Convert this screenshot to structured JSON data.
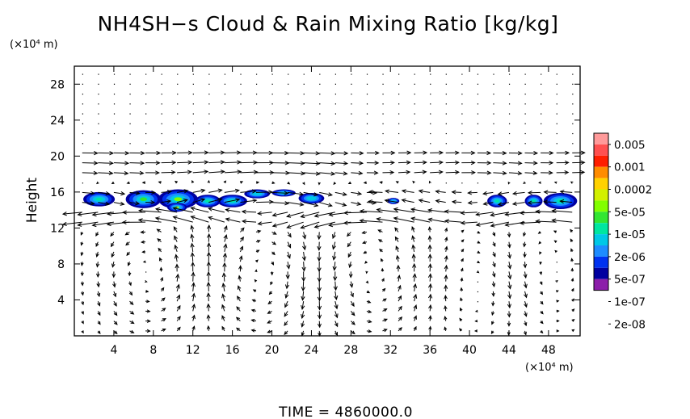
{
  "chart_data": {
    "type": "heatmap",
    "title": "NH4SH−s Cloud & Rain Mixing Ratio [kg/kg]",
    "xunit": "(×10⁴ m)",
    "yunit": "(×10⁴ m)",
    "ylabel": "Height",
    "time_label": "TIME  =  4860000.0",
    "xlim": [
      0,
      51.2
    ],
    "ylim": [
      0,
      30
    ],
    "xticks": [
      "4",
      "8",
      "12",
      "16",
      "20",
      "24",
      "28",
      "32",
      "36",
      "40",
      "44",
      "48"
    ],
    "yticks": [
      "4",
      "8",
      "12",
      "16",
      "20",
      "24",
      "28"
    ],
    "colorbar": {
      "labels": [
        "0.005",
        "0.001",
        "0.0002",
        "5e-05",
        "1e-05",
        "2e-06",
        "5e-07",
        "1e-07",
        "2e-08"
      ],
      "colors": [
        "#ff9a9a",
        "#ff5050",
        "#ff1e00",
        "#ff8c00",
        "#ffd200",
        "#d2f000",
        "#82ff00",
        "#32e632",
        "#00e6a0",
        "#00c8e6",
        "#1e8cff",
        "#0032f0",
        "#0000a0",
        "#8c1eaa"
      ]
    },
    "cloud_patches": [
      {
        "x": 2.5,
        "y": 15.2,
        "w": 3.2,
        "h": 1.6,
        "level": 8
      },
      {
        "x": 7.0,
        "y": 15.2,
        "w": 3.6,
        "h": 2.0,
        "level": 7
      },
      {
        "x": 10.5,
        "y": 15.2,
        "w": 4.0,
        "h": 2.2,
        "level": 6
      },
      {
        "x": 10.4,
        "y": 14.3,
        "w": 2.0,
        "h": 1.0,
        "level": 5
      },
      {
        "x": 13.5,
        "y": 15.0,
        "w": 2.6,
        "h": 1.4,
        "level": 8
      },
      {
        "x": 16.0,
        "y": 15.0,
        "w": 3.0,
        "h": 1.4,
        "level": 8
      },
      {
        "x": 18.5,
        "y": 15.8,
        "w": 2.6,
        "h": 1.0,
        "level": 9
      },
      {
        "x": 21.2,
        "y": 15.9,
        "w": 2.4,
        "h": 0.8,
        "level": 9
      },
      {
        "x": 24.0,
        "y": 15.3,
        "w": 2.6,
        "h": 1.2,
        "level": 9
      },
      {
        "x": 32.3,
        "y": 15.0,
        "w": 1.2,
        "h": 0.7,
        "level": 10
      },
      {
        "x": 42.8,
        "y": 15.0,
        "w": 2.0,
        "h": 1.4,
        "level": 8
      },
      {
        "x": 46.5,
        "y": 15.0,
        "w": 1.8,
        "h": 1.4,
        "level": 8
      },
      {
        "x": 49.2,
        "y": 15.0,
        "w": 3.4,
        "h": 1.8,
        "level": 8
      }
    ],
    "grid": false,
    "legend": "right"
  }
}
